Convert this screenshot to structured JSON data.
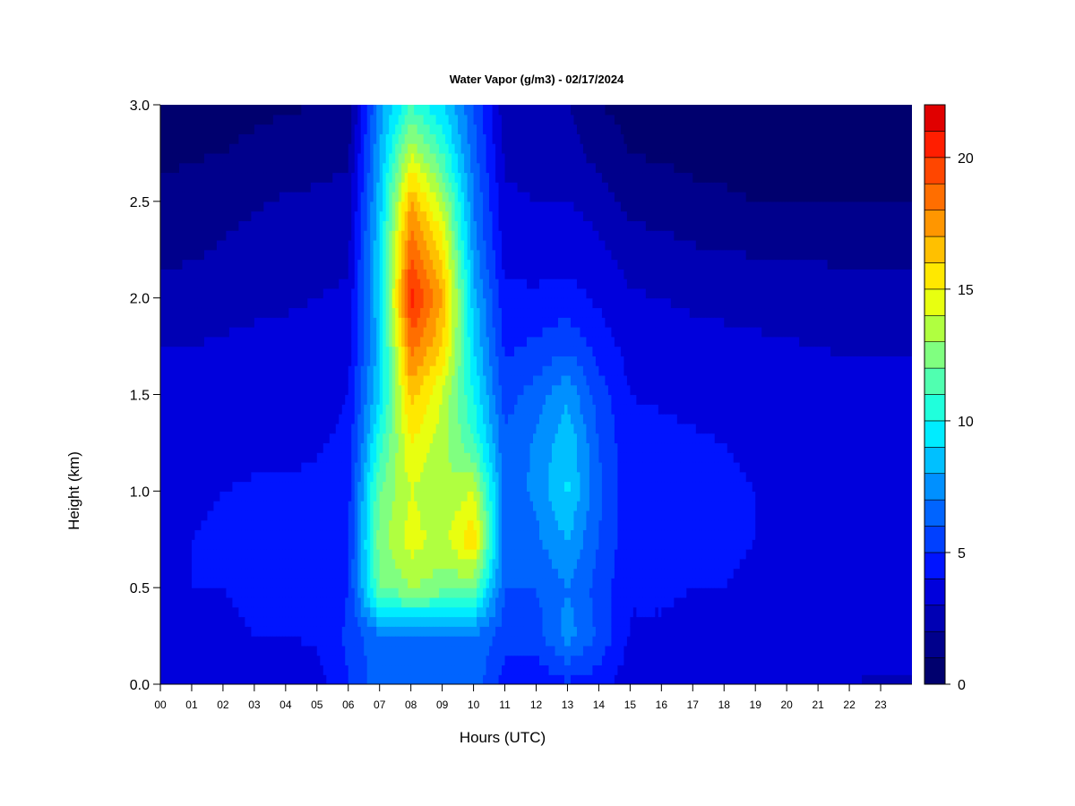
{
  "chart_data": {
    "type": "heatmap",
    "title": "Water Vapor (g/m3) - 02/17/2024",
    "xlabel": "Hours (UTC)",
    "ylabel": "Height (km)",
    "xlim": [
      0,
      24
    ],
    "ylim": [
      0,
      3.0
    ],
    "x_ticks": [
      "00",
      "01",
      "02",
      "03",
      "04",
      "05",
      "06",
      "07",
      "08",
      "09",
      "10",
      "11",
      "12",
      "13",
      "14",
      "15",
      "16",
      "17",
      "18",
      "19",
      "20",
      "21",
      "22",
      "23"
    ],
    "y_ticks": [
      "0.0",
      "0.5",
      "1.0",
      "1.5",
      "2.0",
      "2.5",
      "3.0"
    ],
    "colorbar": {
      "range": [
        0,
        22
      ],
      "ticks": [
        "0",
        "5",
        "10",
        "15",
        "20"
      ],
      "levels": 22,
      "colors": [
        "#00006e",
        "#00008c",
        "#0000b4",
        "#0000dc",
        "#0014ff",
        "#0040ff",
        "#0064ff",
        "#0090ff",
        "#00c0ff",
        "#00ecff",
        "#20ffdc",
        "#50ffb0",
        "#80ff80",
        "#b0ff40",
        "#e8ff10",
        "#ffe800",
        "#ffc000",
        "#ff9600",
        "#ff6e00",
        "#ff4600",
        "#ff1e00",
        "#e00000",
        "#a00000",
        "#780000"
      ]
    },
    "hours": [
      0,
      1,
      2,
      3,
      4,
      5,
      6,
      7,
      8,
      9,
      10,
      11,
      12,
      13,
      14,
      15,
      16,
      17,
      18,
      19,
      20,
      21,
      22,
      23
    ],
    "heights_km": [
      0.0,
      0.25,
      0.5,
      0.75,
      1.0,
      1.25,
      1.5,
      1.75,
      2.0,
      2.25,
      2.5,
      2.75,
      3.0
    ],
    "values_g_m3": [
      [
        3.2,
        3.8,
        4.0,
        3.9,
        3.8,
        3.5,
        3.4,
        3.0,
        2.6,
        1.6,
        1.2,
        0.8,
        0.6
      ],
      [
        3.3,
        3.9,
        4.0,
        4.0,
        3.9,
        3.6,
        3.4,
        3.0,
        2.6,
        1.8,
        1.4,
        0.9,
        0.6
      ],
      [
        3.3,
        3.9,
        4.0,
        4.1,
        4.0,
        3.7,
        3.5,
        3.1,
        2.7,
        2.1,
        1.7,
        1.0,
        0.7
      ],
      [
        3.4,
        4.0,
        4.1,
        4.2,
        4.1,
        3.8,
        3.5,
        3.2,
        2.8,
        2.3,
        1.9,
        1.2,
        0.8
      ],
      [
        3.5,
        4.0,
        4.2,
        4.3,
        4.1,
        3.8,
        3.6,
        3.2,
        2.9,
        2.4,
        2.1,
        1.4,
        0.9
      ],
      [
        3.6,
        4.1,
        4.3,
        4.3,
        4.2,
        3.9,
        3.6,
        3.3,
        3.0,
        2.5,
        2.2,
        1.6,
        1.0
      ],
      [
        5.0,
        5.2,
        5.0,
        4.8,
        4.6,
        4.2,
        4.0,
        3.6,
        3.2,
        2.8,
        2.4,
        1.8,
        1.2
      ],
      [
        6.5,
        6.8,
        12.0,
        12.5,
        12.0,
        10.5,
        9.0,
        8.5,
        9.0,
        9.0,
        8.5,
        8.0,
        7.5
      ],
      [
        6.8,
        7.0,
        13.0,
        14.5,
        14.0,
        15.0,
        16.5,
        18.5,
        20.5,
        19.0,
        17.0,
        14.0,
        11.0
      ],
      [
        6.8,
        7.0,
        12.5,
        13.5,
        13.0,
        13.5,
        14.0,
        16.0,
        17.0,
        15.5,
        13.5,
        11.0,
        9.0
      ],
      [
        6.6,
        6.8,
        12.0,
        16.0,
        14.0,
        11.0,
        10.0,
        9.0,
        8.5,
        7.5,
        7.0,
        6.5,
        6.0
      ],
      [
        4.5,
        5.5,
        6.0,
        6.5,
        6.5,
        6.2,
        5.5,
        4.8,
        4.2,
        3.6,
        3.2,
        2.8,
        2.4
      ],
      [
        4.2,
        5.5,
        6.0,
        6.8,
        7.2,
        7.2,
        6.5,
        5.2,
        4.2,
        3.5,
        3.0,
        2.6,
        2.2
      ],
      [
        4.8,
        7.5,
        7.0,
        8.0,
        9.2,
        8.8,
        7.8,
        5.8,
        4.4,
        3.6,
        3.0,
        2.5,
        2.0
      ],
      [
        4.4,
        5.8,
        5.6,
        6.0,
        6.2,
        6.0,
        5.5,
        4.6,
        3.8,
        3.2,
        2.6,
        1.6,
        1.0
      ],
      [
        3.4,
        3.9,
        4.1,
        4.3,
        4.3,
        4.2,
        4.0,
        3.6,
        3.1,
        2.6,
        1.6,
        1.0,
        0.7
      ],
      [
        3.4,
        3.9,
        4.1,
        4.3,
        4.3,
        4.2,
        3.9,
        3.5,
        3.0,
        2.4,
        1.4,
        0.9,
        0.7
      ],
      [
        3.3,
        3.8,
        4.0,
        4.2,
        4.2,
        4.1,
        3.8,
        3.4,
        2.8,
        2.1,
        1.2,
        0.8,
        0.6
      ],
      [
        3.3,
        3.8,
        4.0,
        4.1,
        4.1,
        4.0,
        3.7,
        3.3,
        2.7,
        2.0,
        1.1,
        0.8,
        0.6
      ],
      [
        3.2,
        3.7,
        3.9,
        4.0,
        4.0,
        3.9,
        3.6,
        3.2,
        2.6,
        1.9,
        1.0,
        0.7,
        0.6
      ],
      [
        3.1,
        3.6,
        3.8,
        3.9,
        3.9,
        3.8,
        3.5,
        3.1,
        2.5,
        1.8,
        1.0,
        0.7,
        0.6
      ],
      [
        3.0,
        3.5,
        3.7,
        3.8,
        3.8,
        3.7,
        3.4,
        3.0,
        2.5,
        1.8,
        1.0,
        0.7,
        0.6
      ],
      [
        3.0,
        3.4,
        3.6,
        3.7,
        3.7,
        3.6,
        3.4,
        2.9,
        2.4,
        1.8,
        1.0,
        0.7,
        0.6
      ],
      [
        2.9,
        3.4,
        3.6,
        3.7,
        3.7,
        3.6,
        3.3,
        2.9,
        2.4,
        1.8,
        1.0,
        0.7,
        0.6
      ]
    ]
  }
}
